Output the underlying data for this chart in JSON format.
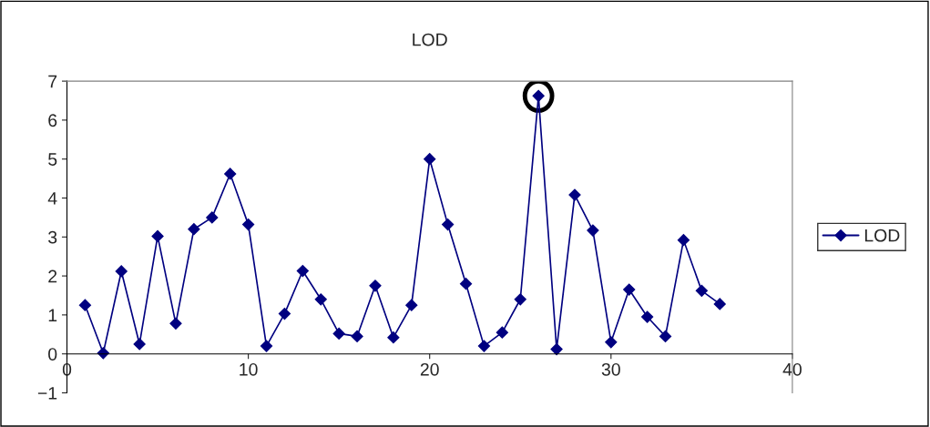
{
  "chart_data": {
    "type": "line",
    "title": "LOD",
    "x": [
      1,
      2,
      3,
      4,
      5,
      6,
      7,
      8,
      9,
      10,
      11,
      12,
      13,
      14,
      15,
      16,
      17,
      18,
      19,
      20,
      21,
      22,
      23,
      24,
      25,
      26,
      27,
      28,
      29,
      30,
      31,
      32,
      33,
      34,
      35,
      36
    ],
    "series": [
      {
        "name": "LOD",
        "color": "#000080",
        "values": [
          1.25,
          0.02,
          2.12,
          0.25,
          3.02,
          0.78,
          3.2,
          3.5,
          4.62,
          3.32,
          0.2,
          1.03,
          2.13,
          1.4,
          0.52,
          0.45,
          1.75,
          0.42,
          1.25,
          5.0,
          3.32,
          1.8,
          0.2,
          0.55,
          1.4,
          6.62,
          0.12,
          4.08,
          3.17,
          0.3,
          1.65,
          0.95,
          0.45,
          2.92,
          1.62,
          1.28
        ]
      }
    ],
    "xlim": [
      0,
      40
    ],
    "xticks": [
      0,
      10,
      20,
      30,
      40
    ],
    "ylim": [
      -1,
      7
    ],
    "yticks": [
      -1,
      0,
      1,
      2,
      3,
      4,
      5,
      6,
      7
    ],
    "marker": "diamond",
    "line_style": "solid",
    "grid": false,
    "legend": "right"
  }
}
